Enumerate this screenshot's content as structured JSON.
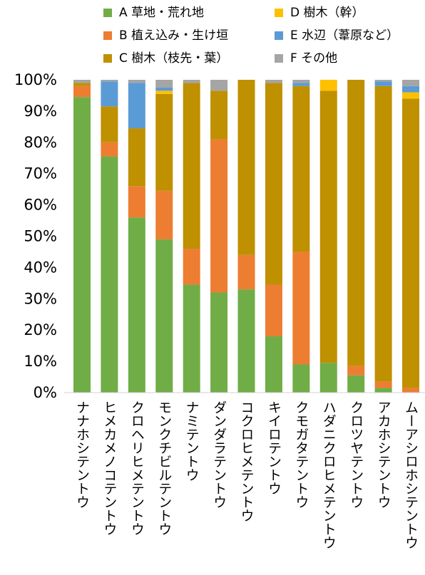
{
  "chart_data": {
    "type": "bar",
    "stacked": true,
    "ylim": [
      0,
      100
    ],
    "yticks": [
      "0%",
      "10%",
      "20%",
      "30%",
      "40%",
      "50%",
      "60%",
      "70%",
      "80%",
      "90%",
      "100%"
    ],
    "grid": false,
    "legend_position": "top",
    "categories": [
      "ナナホシテントウ",
      "ヒメカメノコテントウ",
      "クロヘリヒメテントウ",
      "モンクチビルテントウ",
      "ナミテントウ",
      "ダンダラテントウ",
      "コクロヒメテントウ",
      "キイロテントウ",
      "クモガタテントウ",
      "ハダニクロヒメテントウ",
      "クロツヤテントウ",
      "アカホシテントウ",
      "ムーアシロホシテントウ"
    ],
    "series": [
      {
        "name": "A 草地・荒れ地",
        "color": "#70ad47",
        "values": [
          94.5,
          75.5,
          56,
          49,
          34.5,
          32,
          33,
          18,
          9,
          9.5,
          5.5,
          1.5,
          0
        ]
      },
      {
        "name": "B 植え込み・生け垣",
        "color": "#ed7d31",
        "values": [
          3.5,
          4.5,
          10,
          15.5,
          11.5,
          49,
          11,
          16.5,
          36,
          0,
          3,
          2,
          1.5
        ]
      },
      {
        "name": "C 樹木（枝先・葉）",
        "color": "#bf9000",
        "values": [
          1,
          11.5,
          18.5,
          31,
          53,
          15.5,
          56,
          64.5,
          53,
          87,
          91.5,
          94.5,
          92.5
        ]
      },
      {
        "name": "D 樹木（幹）",
        "color": "#ffc000",
        "values": [
          0,
          0,
          0,
          1,
          0,
          0,
          0,
          0,
          0,
          3.5,
          0,
          0,
          2
        ]
      },
      {
        "name": "E 水辺（葦原など）",
        "color": "#5b9bd5",
        "values": [
          0,
          8,
          14.5,
          1,
          0,
          0,
          0,
          0,
          1,
          0,
          0,
          1.5,
          2
        ]
      },
      {
        "name": "F その他",
        "color": "#a5a5a5",
        "values": [
          1,
          0.5,
          1,
          2.5,
          1,
          3.5,
          0,
          1,
          1,
          0,
          0,
          0.5,
          2
        ]
      }
    ]
  },
  "legend": [
    {
      "label": "A 草地・荒れ地",
      "color": "#70ad47"
    },
    {
      "label": "D 樹木（幹）",
      "color": "#ffc000"
    },
    {
      "label": "B 植え込み・生け垣",
      "color": "#ed7d31"
    },
    {
      "label": "E 水辺（葦原など）",
      "color": "#5b9bd5"
    },
    {
      "label": "C 樹木（枝先・葉）",
      "color": "#bf9000"
    },
    {
      "label": "F その他",
      "color": "#a5a5a5"
    }
  ]
}
